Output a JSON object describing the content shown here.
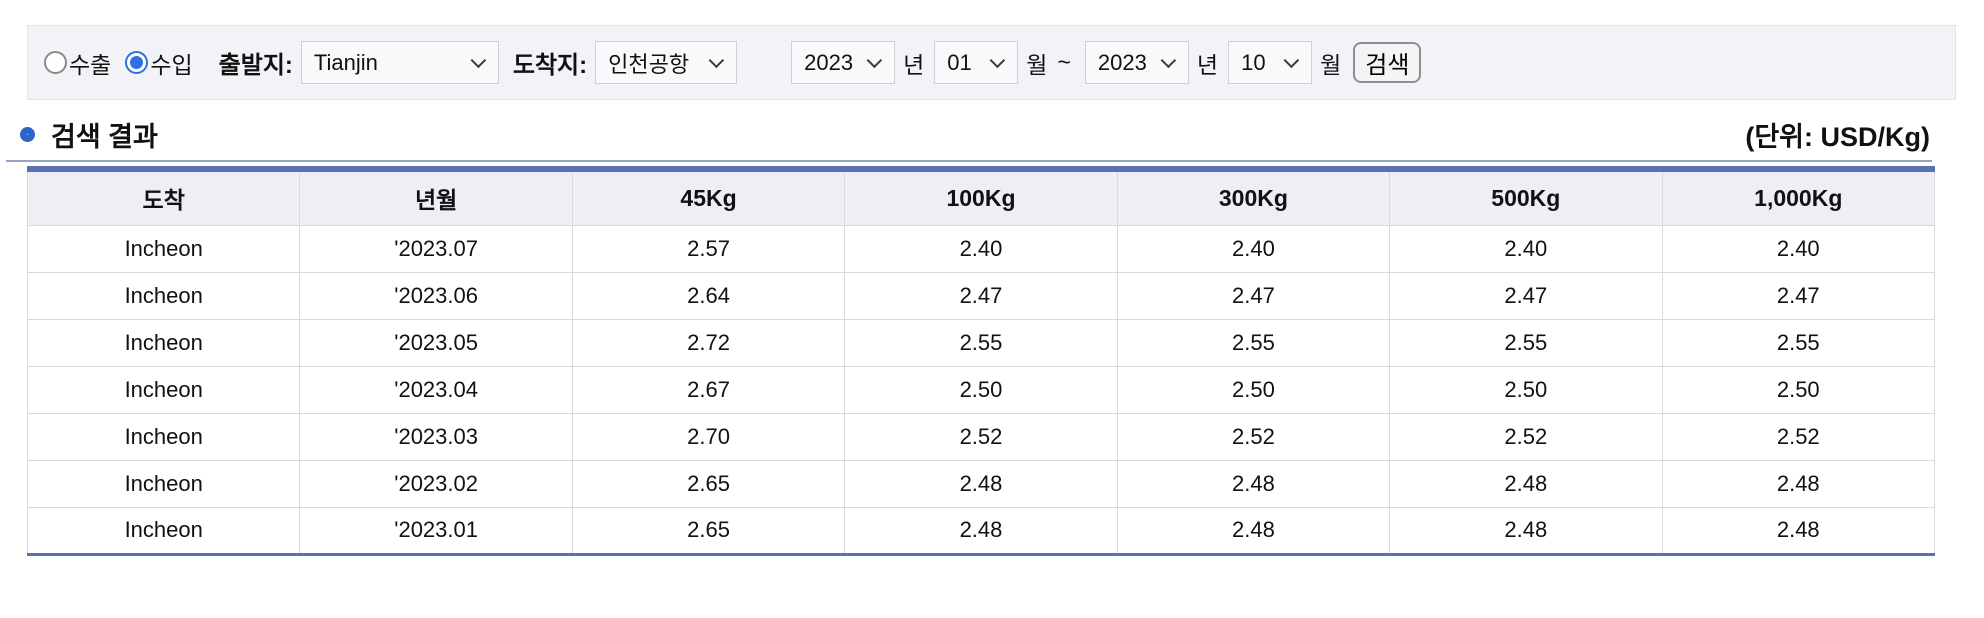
{
  "filter_bar": {
    "radio_export": {
      "label": "수출",
      "checked": false
    },
    "radio_import": {
      "label": "수입",
      "checked": true
    },
    "origin_label": "출발지:",
    "origin_value": "Tianjin",
    "dest_label": "도착지:",
    "dest_value": "인천공항",
    "from_year": "2023",
    "from_month": "01",
    "to_year": "2023",
    "to_month": "10",
    "year_suffix": "년",
    "month_suffix": "월",
    "range_separator": "~",
    "search_button": "검색"
  },
  "results_header": {
    "title": "검색 결과",
    "unit": "(단위: USD/Kg)"
  },
  "table": {
    "columns": [
      "도착",
      "년월",
      "45Kg",
      "100Kg",
      "300Kg",
      "500Kg",
      "1,000Kg"
    ],
    "rows": [
      [
        "Incheon",
        "'2023.07",
        "2.57",
        "2.40",
        "2.40",
        "2.40",
        "2.40"
      ],
      [
        "Incheon",
        "'2023.06",
        "2.64",
        "2.47",
        "2.47",
        "2.47",
        "2.47"
      ],
      [
        "Incheon",
        "'2023.05",
        "2.72",
        "2.55",
        "2.55",
        "2.55",
        "2.55"
      ],
      [
        "Incheon",
        "'2023.04",
        "2.67",
        "2.50",
        "2.50",
        "2.50",
        "2.50"
      ],
      [
        "Incheon",
        "'2023.03",
        "2.70",
        "2.52",
        "2.52",
        "2.52",
        "2.52"
      ],
      [
        "Incheon",
        "'2023.02",
        "2.65",
        "2.48",
        "2.48",
        "2.48",
        "2.48"
      ],
      [
        "Incheon",
        "'2023.01",
        "2.65",
        "2.48",
        "2.48",
        "2.48",
        "2.48"
      ]
    ]
  },
  "colors": {
    "table_accent_border": "#5a71b4",
    "section_icon_blue": "#2e63c8",
    "radio_checked_blue": "#2f6fe4",
    "header_row_bg": "#edeff4",
    "filter_bar_bg": "#f2f3f6"
  }
}
